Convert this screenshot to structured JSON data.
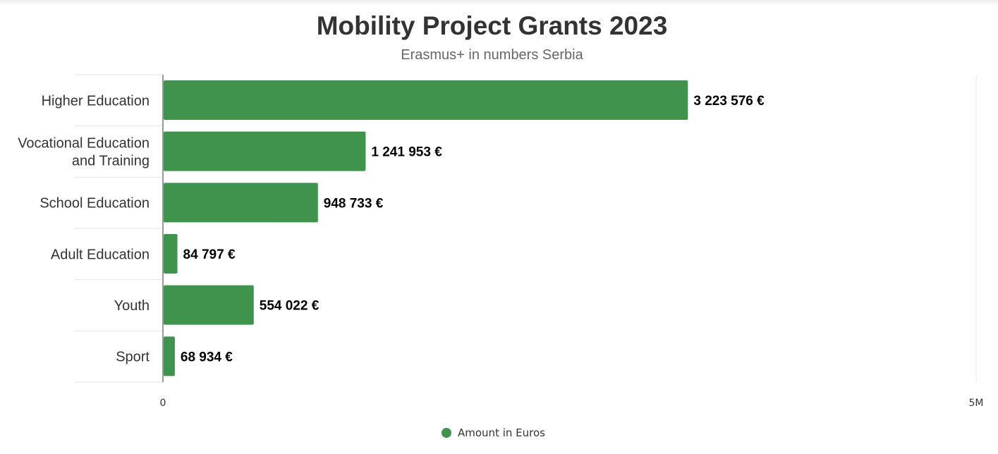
{
  "chart_data": {
    "type": "bar",
    "orientation": "horizontal",
    "title": "Mobility Project Grants 2023",
    "subtitle": "Erasmus+ in numbers Serbia",
    "categories": [
      "Higher Education",
      "Vocational Education and Training",
      "School Education",
      "Adult Education",
      "Youth",
      "Sport"
    ],
    "category_lines": [
      [
        "Higher Education"
      ],
      [
        "Vocational Education",
        "and Training"
      ],
      [
        "School Education"
      ],
      [
        "Adult Education"
      ],
      [
        "Youth"
      ],
      [
        "Sport"
      ]
    ],
    "series": [
      {
        "name": "Amount in Euros",
        "color": "#3f934d",
        "values": [
          3223576,
          1241953,
          948733,
          84797,
          554022,
          68934
        ],
        "data_labels": [
          "3 223 576 €",
          "1 241 953 €",
          "948 733 €",
          "84 797 €",
          "554 022 €",
          "68 934 €"
        ]
      }
    ],
    "xlim": [
      0,
      5000000
    ],
    "x_tick_labels": [
      "0",
      "5M"
    ],
    "xlabel": "",
    "ylabel": "",
    "grid": false,
    "legend_position": "bottom-center"
  }
}
